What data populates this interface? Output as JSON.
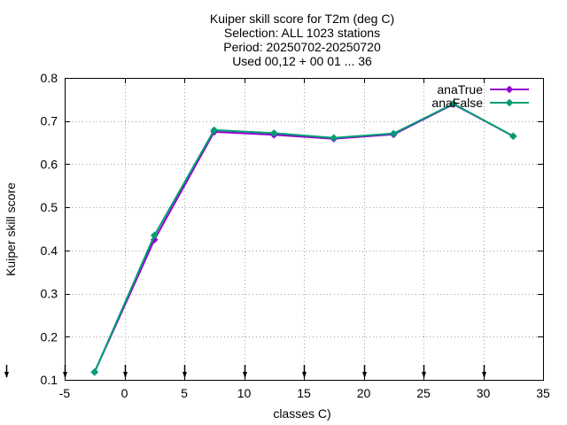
{
  "chart_data": {
    "type": "line",
    "title_lines": [
      "Kuiper skill score  for T2m (deg C)",
      "Selection: ALL   1023 stations",
      "Period: 20250702-20250720",
      "Used 00,12 + 00 01 ... 36"
    ],
    "xlabel": "classes C)",
    "ylabel": "Kuiper skill score",
    "xlim": [
      -5,
      35
    ],
    "ylim": [
      0.1,
      0.8
    ],
    "xticks": [
      "-5",
      "0",
      "5",
      "10",
      "15",
      "20",
      "25",
      "30",
      "35"
    ],
    "yticks": [
      "0.1",
      "0.2",
      "0.3",
      "0.4",
      "0.5",
      "0.6",
      "0.7",
      "0.8"
    ],
    "grid": true,
    "legend_position": "top-right",
    "bottom_arrow_x": [
      -5,
      0,
      5,
      10,
      15,
      20,
      25,
      30
    ],
    "series": [
      {
        "name": "anaTrue",
        "color": "#9400d3",
        "x": [
          -2.5,
          2.5,
          7.5,
          12.5,
          17.5,
          22.5,
          27.5,
          32.5
        ],
        "y": [
          0.118,
          0.425,
          0.675,
          0.668,
          0.659,
          0.669,
          0.739,
          0.665
        ]
      },
      {
        "name": "anaFalse",
        "color": "#009e73",
        "x": [
          -2.5,
          2.5,
          7.5,
          12.5,
          17.5,
          22.5,
          27.5,
          32.5
        ],
        "y": [
          0.118,
          0.435,
          0.679,
          0.672,
          0.661,
          0.671,
          0.74,
          0.665
        ]
      }
    ]
  }
}
